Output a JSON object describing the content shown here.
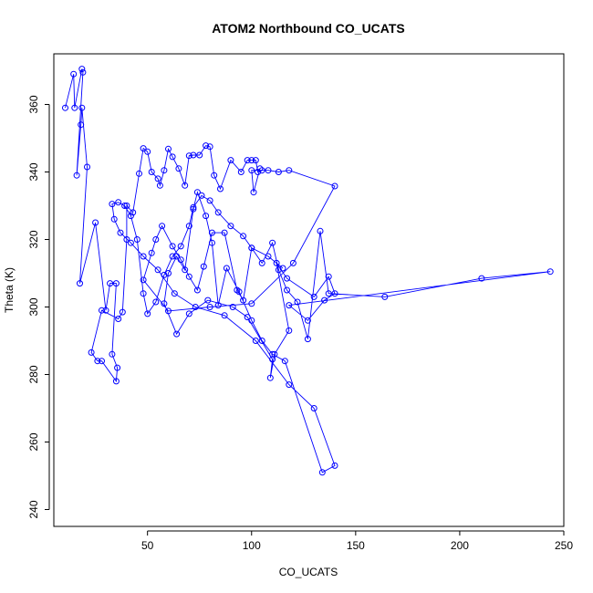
{
  "chart_data": {
    "type": "scatter",
    "title": "ATOM2 Northbound CO_UCATS",
    "xlabel": "CO_UCATS",
    "ylabel": "Theta (K)",
    "xlim": [
      5,
      250
    ],
    "ylim": [
      235,
      375
    ],
    "xticks": [
      50,
      100,
      150,
      200,
      250
    ],
    "yticks": [
      240,
      260,
      280,
      300,
      320,
      340,
      360
    ],
    "xtick_labels": [
      "50",
      "100",
      "150",
      "200",
      "250"
    ],
    "ytick_labels": [
      "240",
      "260",
      "280",
      "300",
      "320",
      "340",
      "360"
    ],
    "grid": false,
    "legend": "none",
    "color": "#0000ff",
    "marker": "open-circle",
    "connected": true,
    "series": [
      {
        "x": [
          10.5,
          14.5,
          15,
          18.5,
          19,
          16,
          18,
          18.5,
          21,
          17.5,
          25,
          30,
          32,
          35,
          33,
          35.5,
          35,
          28,
          26,
          23,
          28,
          36,
          38,
          40,
          40,
          43,
          46,
          48,
          50,
          52,
          55,
          56,
          58,
          60,
          62,
          65,
          68,
          70,
          72,
          75,
          78,
          80,
          82,
          85,
          90,
          95,
          98,
          100,
          102,
          103,
          104,
          101,
          100,
          105,
          108,
          113,
          118,
          140,
          120,
          100,
          80,
          60,
          48,
          52,
          54,
          57,
          62,
          66,
          70,
          74,
          77,
          81,
          87,
          93,
          96,
          100,
          105,
          110,
          113,
          117,
          122,
          127,
          133,
          137,
          164,
          210.5,
          243.5,
          118,
          127,
          135,
          140,
          137,
          130,
          117,
          112,
          118,
          111,
          109,
          110,
          98,
          91,
          79,
          70,
          64,
          58,
          60,
          64,
          68,
          72,
          74,
          78,
          81,
          84,
          88,
          94,
          100,
          105,
          110,
          116,
          134,
          140,
          130,
          118,
          102,
          87,
          73,
          63,
          55,
          48,
          42,
          37,
          34,
          33,
          36,
          39,
          42,
          45,
          48,
          50,
          54,
          58,
          62,
          66,
          70,
          72,
          76,
          80,
          84,
          90,
          96,
          100,
          108,
          115
        ],
        "y": [
          359,
          369,
          359,
          370.5,
          369.5,
          339,
          354,
          359,
          341.5,
          307,
          325,
          299,
          307,
          307,
          286,
          282,
          278,
          284,
          284,
          286.5,
          299,
          296.5,
          298.5,
          320,
          330,
          328,
          339.5,
          347,
          346,
          340,
          338,
          336,
          340.5,
          346.8,
          344.5,
          341,
          336,
          344.8,
          345,
          345,
          347.8,
          347.5,
          339,
          335,
          343.5,
          340,
          343.5,
          343.5,
          343.5,
          340,
          341,
          334,
          340.5,
          340.5,
          340.5,
          340,
          340.5,
          335.8,
          313,
          301,
          300,
          298.8,
          308,
          316,
          320,
          324,
          318,
          314,
          309,
          305,
          312,
          322,
          322,
          305,
          302,
          317.5,
          313,
          319,
          311,
          305,
          301.5,
          290.5,
          322.5,
          304,
          303,
          308.5,
          310.5,
          300.5,
          296,
          302,
          304,
          309,
          303,
          308.5,
          313,
          293,
          286,
          279,
          284.5,
          297,
          300,
          302,
          298,
          292,
          301,
          310,
          315,
          311,
          329,
          334,
          327,
          319,
          300.5,
          311.5,
          304.5,
          296,
          290,
          286,
          284,
          251,
          253,
          270,
          277,
          290,
          297.5,
          300,
          304,
          311,
          315,
          319,
          322,
          326,
          330.5,
          331,
          330,
          327,
          320,
          304,
          298,
          301.5,
          309.5,
          315,
          318,
          324,
          329.5,
          333,
          331.5,
          328,
          324,
          321,
          317.5,
          315,
          311.5
        ]
      }
    ]
  }
}
